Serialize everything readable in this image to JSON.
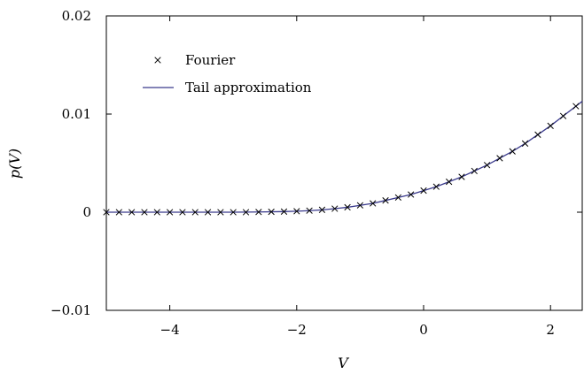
{
  "chart_data": {
    "type": "line",
    "xlabel": "V",
    "ylabel": "p(V)",
    "xlim": [
      -5,
      2.5
    ],
    "ylim": [
      -0.01,
      0.02
    ],
    "xticks": [
      -4,
      -2,
      0,
      2
    ],
    "xtick_labels": [
      "−4",
      "−2",
      "0",
      "2"
    ],
    "yticks": [
      -0.01,
      0,
      0.01,
      0.02
    ],
    "ytick_labels": [
      "−0.01",
      "0",
      "0.01",
      "0.02"
    ],
    "grid": false,
    "legend": {
      "position": "top-left"
    },
    "series": [
      {
        "name": "Fourier",
        "style": "markers-x",
        "color": "#000000",
        "x": [
          -5.0,
          -4.8,
          -4.6,
          -4.4,
          -4.2,
          -4.0,
          -3.8,
          -3.6,
          -3.4,
          -3.2,
          -3.0,
          -2.8,
          -2.6,
          -2.4,
          -2.2,
          -2.0,
          -1.8,
          -1.6,
          -1.4,
          -1.2,
          -1.0,
          -0.8,
          -0.6,
          -0.4,
          -0.2,
          0.0,
          0.2,
          0.4,
          0.6,
          0.8,
          1.0,
          1.2,
          1.4,
          1.6,
          1.8,
          2.0,
          2.2,
          2.4
        ],
        "y": [
          0.0,
          0.0,
          0.0,
          0.0,
          0.0,
          0.0,
          0.0,
          0.0,
          0.0,
          0.0,
          0.0,
          0.0,
          2e-05,
          4e-05,
          6e-05,
          0.0001,
          0.00016,
          0.00024,
          0.00036,
          0.0005,
          0.0007,
          0.0009,
          0.0012,
          0.0015,
          0.0018,
          0.0022,
          0.0026,
          0.0031,
          0.0036,
          0.0042,
          0.0048,
          0.0055,
          0.0062,
          0.007,
          0.0079,
          0.0088,
          0.0098,
          0.0108
        ]
      },
      {
        "name": "Tail approximation",
        "style": "line",
        "color": "#3a3a8c",
        "x": [
          -5.0,
          -4.5,
          -4.0,
          -3.5,
          -3.0,
          -2.6,
          -2.2,
          -2.0,
          -1.8,
          -1.6,
          -1.4,
          -1.2,
          -1.0,
          -0.8,
          -0.6,
          -0.4,
          -0.2,
          0.0,
          0.2,
          0.4,
          0.6,
          0.8,
          1.0,
          1.2,
          1.4,
          1.6,
          1.8,
          2.0,
          2.2,
          2.4,
          2.5
        ],
        "y": [
          0.0,
          0.0,
          0.0,
          0.0,
          0.0,
          2e-05,
          6e-05,
          0.0001,
          0.00016,
          0.00024,
          0.00036,
          0.0005,
          0.0007,
          0.0009,
          0.0012,
          0.0015,
          0.0018,
          0.0022,
          0.0026,
          0.0031,
          0.0036,
          0.0042,
          0.0048,
          0.0055,
          0.0062,
          0.007,
          0.0079,
          0.0088,
          0.0098,
          0.0108,
          0.0113
        ]
      }
    ]
  }
}
